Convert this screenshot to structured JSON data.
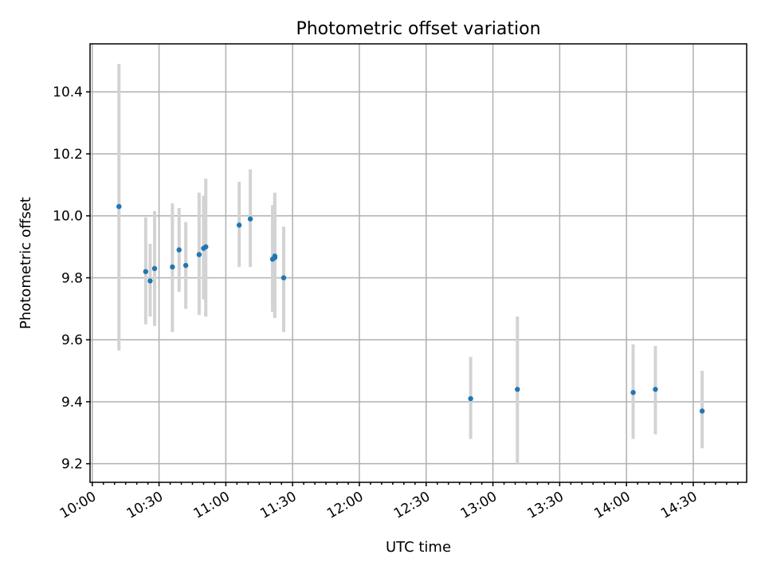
{
  "chart_data": {
    "type": "scatter",
    "title": "Photometric offset variation",
    "xlabel": "UTC time",
    "ylabel": "Photometric offset",
    "grid": true,
    "x_axis_type": "time",
    "xlim": [
      "09:59",
      "14:54"
    ],
    "ylim": [
      9.14,
      10.555
    ],
    "xticks": [
      "10:00",
      "10:30",
      "11:00",
      "11:30",
      "12:00",
      "12:30",
      "13:00",
      "13:30",
      "14:00",
      "14:30"
    ],
    "yticks": [
      9.2,
      9.4,
      9.6,
      9.8,
      10.0,
      10.2,
      10.4
    ],
    "ytick_labels": [
      "9.2",
      "9.4",
      "9.6",
      "9.8",
      "10.0",
      "10.2",
      "10.4"
    ],
    "marker_color": "#1f77b4",
    "errorbar_color": "#d3d3d3",
    "points": [
      {
        "x": "10:12",
        "y": 10.03,
        "ylow": 9.565,
        "yhigh": 10.49
      },
      {
        "x": "10:24",
        "y": 9.82,
        "ylow": 9.65,
        "yhigh": 9.995
      },
      {
        "x": "10:26",
        "y": 9.79,
        "ylow": 9.675,
        "yhigh": 9.91
      },
      {
        "x": "10:28",
        "y": 9.83,
        "ylow": 9.645,
        "yhigh": 10.015
      },
      {
        "x": "10:36",
        "y": 9.835,
        "ylow": 9.625,
        "yhigh": 10.04
      },
      {
        "x": "10:39",
        "y": 9.89,
        "ylow": 9.755,
        "yhigh": 10.025
      },
      {
        "x": "10:42",
        "y": 9.84,
        "ylow": 9.7,
        "yhigh": 9.98
      },
      {
        "x": "10:48",
        "y": 9.875,
        "ylow": 9.68,
        "yhigh": 10.075
      },
      {
        "x": "10:50",
        "y": 9.895,
        "ylow": 9.73,
        "yhigh": 10.065
      },
      {
        "x": "10:51",
        "y": 9.9,
        "ylow": 9.675,
        "yhigh": 10.12
      },
      {
        "x": "11:06",
        "y": 9.97,
        "ylow": 9.835,
        "yhigh": 10.11
      },
      {
        "x": "11:11",
        "y": 9.99,
        "ylow": 9.835,
        "yhigh": 10.15
      },
      {
        "x": "11:21",
        "y": 9.86,
        "ylow": 9.69,
        "yhigh": 10.035
      },
      {
        "x": "11:22",
        "y": 9.87,
        "ylow": 9.67,
        "yhigh": 10.075
      },
      {
        "x": "11:22",
        "y": 9.865,
        "ylow": 9.675,
        "yhigh": 10.055
      },
      {
        "x": "11:26",
        "y": 9.8,
        "ylow": 9.625,
        "yhigh": 9.965
      },
      {
        "x": "12:50",
        "y": 9.41,
        "ylow": 9.28,
        "yhigh": 9.545
      },
      {
        "x": "13:11",
        "y": 9.44,
        "ylow": 9.2,
        "yhigh": 9.675
      },
      {
        "x": "14:03",
        "y": 9.43,
        "ylow": 9.28,
        "yhigh": 9.585
      },
      {
        "x": "14:13",
        "y": 9.44,
        "ylow": 9.295,
        "yhigh": 9.58
      },
      {
        "x": "14:34",
        "y": 9.37,
        "ylow": 9.25,
        "yhigh": 9.5
      }
    ]
  }
}
